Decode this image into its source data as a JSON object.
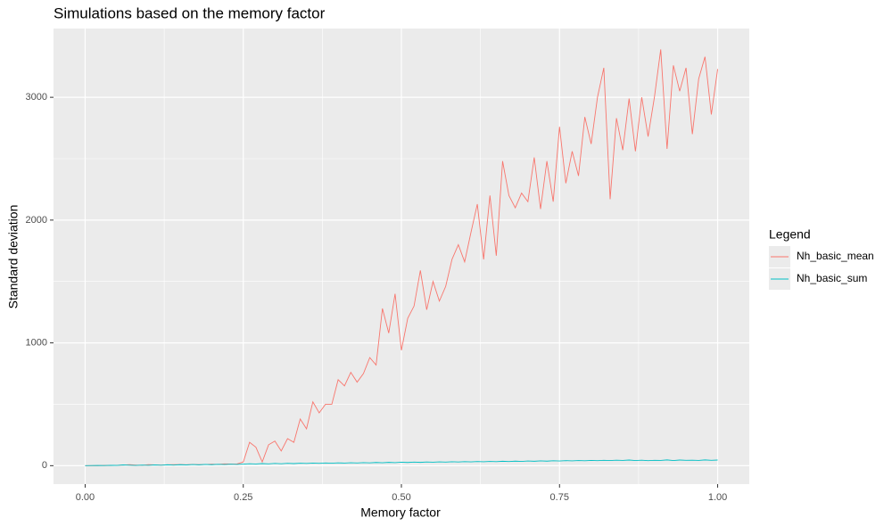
{
  "chart_data": {
    "type": "line",
    "title": "Simulations based on the memory factor",
    "x_label": "Memory factor",
    "y_label": "Standard deviation",
    "legend_title": "Legend",
    "x": [
      0,
      0.01,
      0.02,
      0.03,
      0.04,
      0.05,
      0.06,
      0.07,
      0.08,
      0.09,
      0.1,
      0.11,
      0.12,
      0.13,
      0.14,
      0.15,
      0.16,
      0.17,
      0.18,
      0.19,
      0.2,
      0.21,
      0.22,
      0.23,
      0.24,
      0.25,
      0.26,
      0.27,
      0.28,
      0.29,
      0.3,
      0.31,
      0.32,
      0.33,
      0.34,
      0.35,
      0.36,
      0.37,
      0.38,
      0.39,
      0.4,
      0.41,
      0.42,
      0.43,
      0.44,
      0.45,
      0.46,
      0.47,
      0.48,
      0.49,
      0.5,
      0.51,
      0.52,
      0.53,
      0.54,
      0.55,
      0.56,
      0.57,
      0.58,
      0.59,
      0.6,
      0.61,
      0.62,
      0.63,
      0.64,
      0.65,
      0.66,
      0.67,
      0.68,
      0.69,
      0.7,
      0.71,
      0.72,
      0.73,
      0.74,
      0.75,
      0.76,
      0.77,
      0.78,
      0.79,
      0.8,
      0.81,
      0.82,
      0.83,
      0.84,
      0.85,
      0.86,
      0.87,
      0.88,
      0.89,
      0.9,
      0.91,
      0.92,
      0.93,
      0.94,
      0.95,
      0.96,
      0.97,
      0.98,
      0.99,
      1
    ],
    "series": [
      {
        "name": "Nh_basic_mean",
        "color": "#F8766D",
        "values": [
          0,
          0,
          0,
          2,
          1,
          3,
          5,
          8,
          5,
          3,
          8,
          6,
          5,
          7,
          8,
          9,
          7,
          10,
          8,
          9,
          12,
          10,
          15,
          13,
          14,
          30,
          190,
          150,
          30,
          170,
          200,
          120,
          220,
          190,
          380,
          300,
          520,
          430,
          500,
          500,
          700,
          650,
          760,
          680,
          750,
          880,
          820,
          1280,
          1080,
          1400,
          940,
          1200,
          1300,
          1590,
          1270,
          1500,
          1340,
          1460,
          1680,
          1800,
          1660,
          1900,
          2130,
          1680,
          2200,
          1710,
          2480,
          2200,
          2100,
          2220,
          2150,
          2510,
          2090,
          2480,
          2150,
          2760,
          2300,
          2560,
          2360,
          2840,
          2620,
          3000,
          3240,
          2170,
          2830,
          2570,
          2990,
          2560,
          3000,
          2680,
          3000,
          3390,
          2580,
          3260,
          3050,
          3240,
          2700,
          3150,
          3330,
          2860,
          3230
        ]
      },
      {
        "name": "Nh_basic_sum",
        "color": "#00BFC4",
        "values": [
          0,
          1,
          2,
          1,
          3,
          2,
          6,
          4,
          2,
          5,
          3,
          6,
          4,
          7,
          5,
          8,
          6,
          9,
          7,
          10,
          8,
          11,
          9,
          12,
          10,
          13,
          16,
          14,
          17,
          15,
          18,
          16,
          19,
          17,
          20,
          18,
          21,
          19,
          22,
          20,
          23,
          21,
          24,
          22,
          25,
          23,
          26,
          24,
          27,
          25,
          28,
          26,
          29,
          27,
          30,
          28,
          31,
          29,
          32,
          30,
          33,
          31,
          34,
          32,
          35,
          33,
          36,
          34,
          37,
          35,
          38,
          36,
          39,
          37,
          40,
          38,
          41,
          39,
          42,
          40,
          43,
          41,
          44,
          42,
          45,
          43,
          46,
          42,
          45,
          41,
          44,
          43,
          47,
          42,
          46,
          44,
          45,
          43,
          47,
          44,
          46
        ]
      }
    ],
    "xlim": [
      -0.05,
      1.05
    ],
    "ylim": [
      -150,
      3560
    ],
    "xticks": [
      {
        "value": 0,
        "label": "0.00"
      },
      0.25,
      {
        "value": 0.5,
        "label": "0.50"
      },
      0.75,
      {
        "value": 1,
        "label": "1.00"
      }
    ],
    "yticks": [
      0,
      1000,
      2000,
      3000
    ],
    "grid": true,
    "legend_position": "right"
  }
}
